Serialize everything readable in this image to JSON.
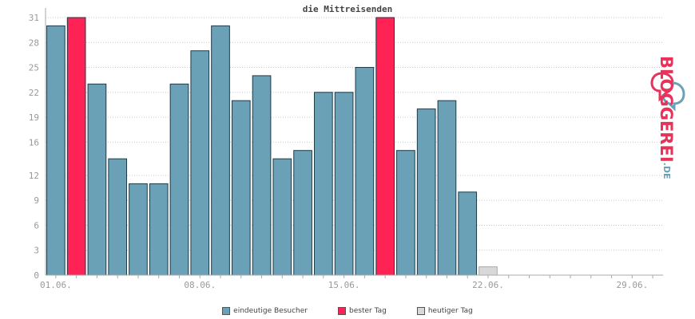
{
  "chart_data": {
    "type": "bar",
    "title": "die Mittreisenden",
    "ylim": [
      0,
      31
    ],
    "yticks": [
      0,
      3,
      6,
      9,
      12,
      16,
      19,
      22,
      25,
      28,
      31
    ],
    "x_start": 1,
    "x_end": 30,
    "xticks": [
      {
        "day": 1,
        "label": "01.06."
      },
      {
        "day": 8,
        "label": "08.06."
      },
      {
        "day": 15,
        "label": "15.06."
      },
      {
        "day": 22,
        "label": "22.06."
      },
      {
        "day": 29,
        "label": "29.06."
      }
    ],
    "series": [
      {
        "name": "eindeutige Besucher",
        "color": "#6aa1b6",
        "values": [
          30,
          31,
          23,
          14,
          11,
          11,
          23,
          27,
          30,
          21,
          24,
          14,
          15,
          22,
          22,
          25,
          31,
          15,
          20,
          21,
          10,
          1
        ]
      }
    ],
    "best_days": [
      2,
      17
    ],
    "today": 22,
    "grid": true
  },
  "legend": [
    {
      "label": "eindeutige Besucher",
      "color": "#6aa1b6"
    },
    {
      "label": "bester Tag",
      "color": "#ff2255"
    },
    {
      "label": "heutiger Tag",
      "color": "#d8d8d8"
    }
  ],
  "logo": {
    "text": "BLOGGEREI",
    "tld": ".DE"
  }
}
